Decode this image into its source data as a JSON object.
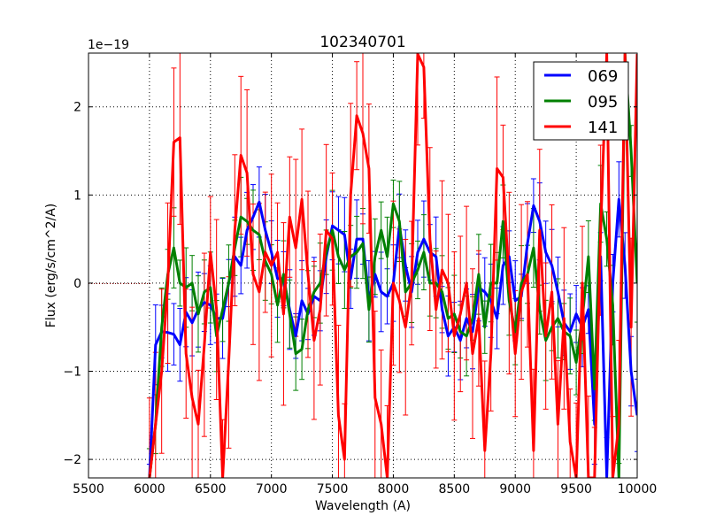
{
  "chart_data": {
    "type": "line",
    "title": "102340701",
    "xlabel": "Wavelength (A)",
    "ylabel": "Flux (erg/s/cm^2/A)",
    "y_offset_text": "1e−19",
    "y_scale_factor": 1e-19,
    "xlim": [
      5500,
      10000
    ],
    "ylim": [
      -2.21,
      2.61
    ],
    "xticks": [
      5500,
      6000,
      6500,
      7000,
      7500,
      8000,
      8500,
      9000,
      9500,
      10000
    ],
    "xtick_labels": [
      "5500",
      "6000",
      "6500",
      "7000",
      "7500",
      "8000",
      "8500",
      "9000",
      "9500",
      "10000"
    ],
    "yticks": [
      -2,
      -1,
      0,
      1,
      2
    ],
    "ytick_labels": [
      "−2",
      "−1",
      "0",
      "1",
      "2"
    ],
    "grid": true,
    "legend_position": "top-right",
    "x": [
      6000,
      6050,
      6100,
      6150,
      6200,
      6250,
      6300,
      6350,
      6400,
      6450,
      6500,
      6550,
      6600,
      6650,
      6700,
      6750,
      6800,
      6850,
      6900,
      6950,
      7000,
      7050,
      7100,
      7150,
      7200,
      7250,
      7300,
      7350,
      7400,
      7450,
      7500,
      7550,
      7600,
      7650,
      7700,
      7750,
      7800,
      7850,
      7900,
      7950,
      8000,
      8050,
      8100,
      8150,
      8200,
      8250,
      8300,
      8350,
      8400,
      8450,
      8500,
      8550,
      8600,
      8650,
      8700,
      8750,
      8800,
      8850,
      8900,
      8950,
      9000,
      9050,
      9100,
      9150,
      9200,
      9250,
      9300,
      9350,
      9400,
      9450,
      9500,
      9550,
      9600,
      9650,
      9700,
      9750,
      9800,
      9850,
      9900,
      9950,
      10000
    ],
    "series": [
      {
        "name": "069",
        "color": "#0000ff",
        "yerr": 0.35,
        "values": [
          -2.3,
          -0.7,
          -0.55,
          -0.56,
          -0.58,
          -0.7,
          -0.33,
          -0.45,
          -0.3,
          -0.22,
          -0.25,
          -0.4,
          -0.4,
          0.0,
          0.3,
          0.2,
          0.6,
          0.75,
          0.92,
          0.6,
          0.35,
          0.05,
          0.05,
          -0.3,
          -0.6,
          -0.2,
          -0.35,
          -0.15,
          -0.2,
          0.3,
          0.65,
          0.6,
          0.55,
          0.05,
          0.5,
          0.5,
          -0.2,
          0.1,
          -0.1,
          -0.15,
          0.0,
          0.65,
          0.2,
          -0.1,
          0.35,
          0.5,
          0.35,
          0.3,
          -0.3,
          -0.6,
          -0.5,
          -0.65,
          -0.4,
          -0.55,
          -0.05,
          -0.1,
          -0.2,
          -0.4,
          0.2,
          0.3,
          -0.2,
          -0.15,
          0.45,
          0.88,
          0.7,
          0.35,
          0.2,
          -0.1,
          -0.45,
          -0.55,
          -0.35,
          -0.5,
          -0.3,
          -1.6,
          0.3,
          -2.2,
          0.0,
          0.95,
          0.2,
          -1.0,
          -1.5
        ]
      },
      {
        "name": "095",
        "color": "#008000",
        "yerr": 0.35,
        "values": [
          -2.3,
          -1.6,
          -0.5,
          0.1,
          0.4,
          0.0,
          -0.05,
          0.0,
          -0.35,
          -0.1,
          -0.05,
          -0.6,
          -0.3,
          0.0,
          0.4,
          0.75,
          0.7,
          0.6,
          0.55,
          0.25,
          0.1,
          -0.25,
          0.1,
          -0.35,
          -0.8,
          -0.75,
          -0.3,
          -0.1,
          0.0,
          0.35,
          0.6,
          0.3,
          0.15,
          0.3,
          0.35,
          0.45,
          -0.3,
          0.3,
          0.6,
          0.3,
          0.9,
          0.7,
          -0.1,
          0.0,
          0.15,
          0.35,
          0.0,
          0.0,
          -0.1,
          -0.4,
          -0.35,
          -0.55,
          -0.6,
          -0.4,
          0.1,
          -0.5,
          0.0,
          0.0,
          0.7,
          -0.2,
          -0.55,
          0.0,
          0.1,
          0.4,
          -0.3,
          -0.65,
          -0.5,
          -0.4,
          -0.55,
          -0.6,
          -0.9,
          -0.4,
          0.3,
          -1.2,
          0.9,
          0.5,
          -0.25,
          -2.3,
          2.6,
          1.5,
          0.0
        ]
      },
      {
        "name": "141",
        "color": "#ff0000",
        "yerr": 0.8,
        "values": [
          -2.3,
          -1.6,
          -1.0,
          0.0,
          1.6,
          1.65,
          -0.8,
          -1.3,
          -1.6,
          -0.7,
          0.35,
          -0.3,
          -2.3,
          -0.9,
          0.6,
          1.45,
          1.25,
          0.1,
          -0.1,
          0.35,
          0.2,
          0.35,
          -0.35,
          0.75,
          0.4,
          0.95,
          0.1,
          -0.65,
          -0.3,
          0.6,
          0.5,
          -1.5,
          -2.0,
          1.0,
          1.9,
          1.7,
          1.3,
          -1.3,
          -1.6,
          -2.3,
          0.0,
          -0.2,
          -0.5,
          0.0,
          2.6,
          2.45,
          0.5,
          -0.3,
          0.15,
          0.0,
          -0.6,
          -0.35,
          0.0,
          -0.8,
          -0.4,
          -1.9,
          -0.8,
          1.3,
          1.2,
          0.0,
          -0.8,
          -0.1,
          0.1,
          -1.9,
          0.6,
          -0.6,
          -0.1,
          -1.6,
          -0.4,
          -1.8,
          -2.4,
          0.0,
          -2.3,
          -2.4,
          0.6,
          2.6,
          -2.4,
          -1.6,
          2.6,
          -0.5,
          2.6
        ]
      }
    ]
  }
}
